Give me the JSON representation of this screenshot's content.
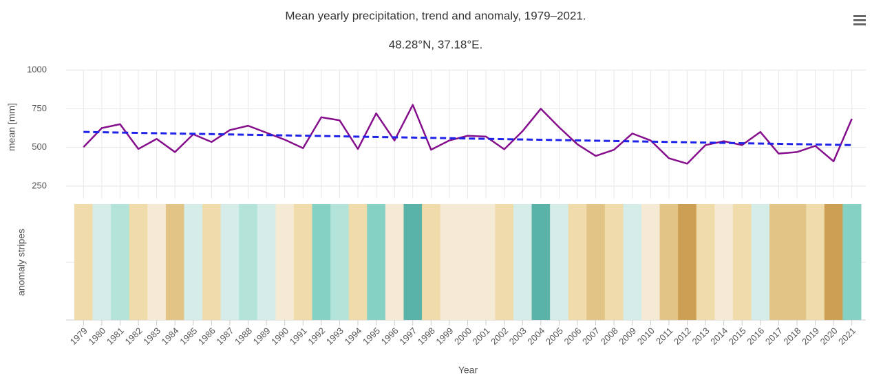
{
  "chart_data": {
    "type": "line",
    "title": "Mean yearly precipitation, trend and anomaly, 1979–2021.",
    "subtitle": "48.28°N, 37.18°E.",
    "ylabel": "mean [mm]",
    "stripes_label": "anomaly stripes",
    "xlabel": "Year",
    "x": [
      1979,
      1980,
      1981,
      1982,
      1983,
      1984,
      1985,
      1986,
      1987,
      1988,
      1989,
      1990,
      1991,
      1992,
      1993,
      1994,
      1995,
      1996,
      1997,
      1998,
      1999,
      2000,
      2001,
      2002,
      2003,
      2004,
      2005,
      2006,
      2007,
      2008,
      2009,
      2010,
      2011,
      2012,
      2013,
      2014,
      2015,
      2016,
      2017,
      2018,
      2019,
      2020,
      2021
    ],
    "series": [
      {
        "color": "#850e8c",
        "values": [
          502,
          625,
          650,
          490,
          555,
          470,
          585,
          535,
          612,
          640,
          595,
          550,
          495,
          695,
          675,
          490,
          720,
          545,
          775,
          485,
          545,
          575,
          570,
          488,
          605,
          750,
          630,
          520,
          445,
          485,
          590,
          545,
          430,
          395,
          515,
          540,
          515,
          600,
          460,
          470,
          510,
          410,
          685
        ]
      }
    ],
    "trend": {
      "color": "#1f22e8",
      "x": [
        1979,
        2021
      ],
      "values": [
        600,
        515
      ]
    },
    "stripe_colors": [
      "#f0dcaa",
      "#d5ece9",
      "#b3e3d9",
      "#f0dcaa",
      "#f5ead3",
      "#e2c486",
      "#d5ece9",
      "#f0dcaa",
      "#d5ece9",
      "#b3e3d9",
      "#d5ece9",
      "#f5ead3",
      "#f0dcaa",
      "#85d1c3",
      "#b3e3d9",
      "#f0dcaa",
      "#85d1c3",
      "#f5ead3",
      "#5ab3a8",
      "#f0dcaa",
      "#f5ead3",
      "#f5ead3",
      "#f5ead3",
      "#f0dcaa",
      "#d5ece9",
      "#5ab3a8",
      "#d5ece9",
      "#f0dcaa",
      "#e2c486",
      "#f0dcaa",
      "#d5ece9",
      "#f5ead3",
      "#e2c486",
      "#cc9f55",
      "#f0dcaa",
      "#f5ead3",
      "#f0dcaa",
      "#d5ece9",
      "#e2c486",
      "#e2c486",
      "#f0dcaa",
      "#cc9f55",
      "#85d1c3"
    ],
    "xlim": [
      1978.5,
      2021.5
    ],
    "ylim": [
      250,
      1000
    ],
    "yticks": [
      250,
      500,
      750,
      1000
    ],
    "grid": true
  }
}
